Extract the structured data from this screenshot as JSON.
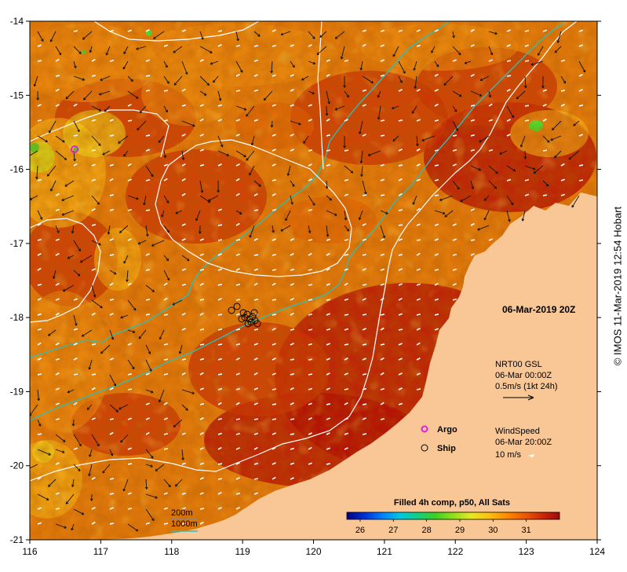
{
  "map": {
    "timestamp": "06-Mar-2019 20Z",
    "longitude_ticks": [
      "116",
      "117",
      "118",
      "119",
      "120",
      "121",
      "122",
      "123",
      "124"
    ],
    "latitude_ticks": [
      "-14",
      "-15",
      "-16",
      "-17",
      "-18",
      "-19",
      "-20",
      "-21"
    ],
    "land_color": "#f9c796",
    "sea_palette": [
      "#b00e06",
      "#c83406",
      "#dc6006",
      "#ea8a10",
      "#f4b418",
      "#f2df20",
      "#c6e61e",
      "#4ed62a"
    ]
  },
  "currents_legend": {
    "product": "NRT00 GSL",
    "time": "06-Mar 00:00Z",
    "scale": "0.5m/s (1kt 24h)"
  },
  "wind_legend": {
    "product": "WindSpeed",
    "time": "06-Mar 20:00Z",
    "scale": "10 m/s"
  },
  "markers": {
    "argo_label": "Argo",
    "argo_color": "#e020e0",
    "ship_label": "Ship"
  },
  "contours": {
    "label_200": "200m",
    "label_1000": "1000m",
    "color_200": "#ffffff",
    "color_1000": "#33bcb0"
  },
  "colorbar": {
    "title": "Filled 4h comp, p50, All Sats",
    "ticks": [
      "26",
      "27",
      "28",
      "29",
      "30",
      "31"
    ],
    "colors": [
      "#000080",
      "#0030d8",
      "#0080ff",
      "#00c8e0",
      "#10d080",
      "#40d020",
      "#90e018",
      "#e8e820",
      "#ffc010",
      "#ff8a00",
      "#f05a00",
      "#d02808",
      "#a00808"
    ]
  },
  "credit": "© IMOS 11-Mar-2019 12:54 Hobart"
}
